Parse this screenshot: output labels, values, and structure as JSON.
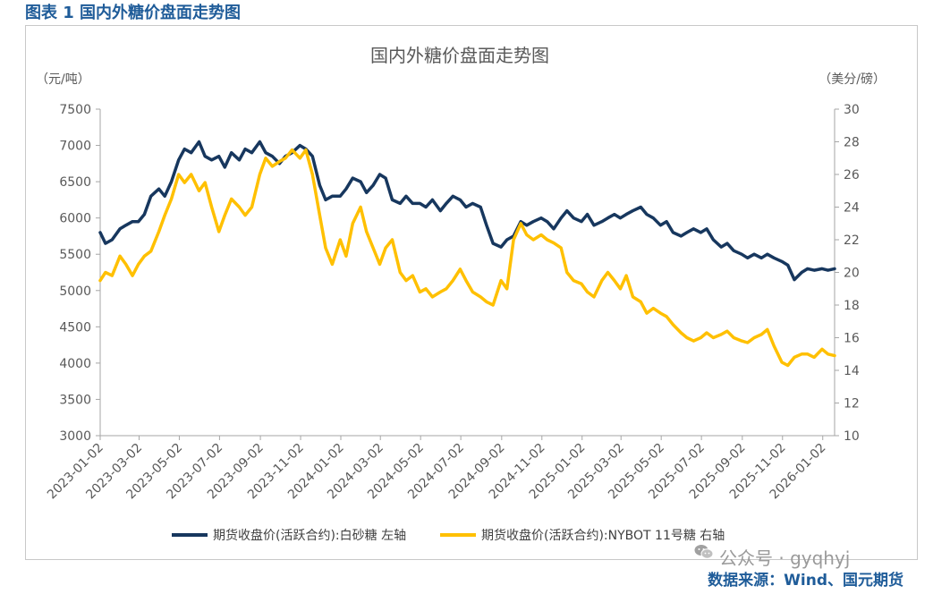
{
  "figure_caption": "图表 1 国内外糖价盘面走势图",
  "source_text": "数据来源：Wind、国元期货",
  "watermark": {
    "icon": "wechat-icon",
    "text": "公众号 · gyqhyj"
  },
  "chart_data": {
    "type": "line",
    "title": "国内外糖价盘面走势图",
    "y_left_unit": "（元/吨）",
    "y_right_unit": "（美分/磅）",
    "y_left_lim": [
      3000,
      7500
    ],
    "y_right_lim": [
      10,
      30
    ],
    "y_left_ticks": [
      3000,
      3500,
      4000,
      4500,
      5000,
      5500,
      6000,
      6500,
      7000,
      7500
    ],
    "y_right_ticks": [
      10,
      12,
      14,
      16,
      18,
      20,
      22,
      24,
      26,
      28,
      30
    ],
    "x_ticks": [
      "2023-01-02",
      "2023-03-02",
      "2023-05-02",
      "2023-07-02",
      "2023-09-02",
      "2023-11-02",
      "2024-01-02",
      "2024-03-02",
      "2024-05-02",
      "2024-07-02",
      "2024-09-02",
      "2024-11-02",
      "2025-01-02",
      "2025-03-02",
      "2025-05-02",
      "2025-07-02",
      "2025-09-02",
      "2025-11-02",
      "2026-01-02"
    ],
    "x_range": [
      "2023-01-02",
      "2026-01-20"
    ],
    "grid": false,
    "legend_position": "bottom",
    "series": [
      {
        "name": "期货收盘价(活跃合约):白砂糖  左轴",
        "axis": "left",
        "color": "#17375e",
        "points": [
          [
            "2023-01-02",
            5800
          ],
          [
            "2023-01-10",
            5650
          ],
          [
            "2023-01-20",
            5700
          ],
          [
            "2023-02-01",
            5850
          ],
          [
            "2023-02-10",
            5900
          ],
          [
            "2023-02-20",
            5950
          ],
          [
            "2023-03-01",
            5950
          ],
          [
            "2023-03-10",
            6050
          ],
          [
            "2023-03-20",
            6300
          ],
          [
            "2023-04-01",
            6400
          ],
          [
            "2023-04-10",
            6300
          ],
          [
            "2023-04-20",
            6500
          ],
          [
            "2023-05-01",
            6800
          ],
          [
            "2023-05-10",
            6950
          ],
          [
            "2023-05-20",
            6900
          ],
          [
            "2023-06-01",
            7050
          ],
          [
            "2023-06-10",
            6850
          ],
          [
            "2023-06-20",
            6800
          ],
          [
            "2023-07-01",
            6850
          ],
          [
            "2023-07-10",
            6700
          ],
          [
            "2023-07-20",
            6900
          ],
          [
            "2023-08-01",
            6800
          ],
          [
            "2023-08-10",
            6950
          ],
          [
            "2023-08-20",
            6900
          ],
          [
            "2023-09-01",
            7050
          ],
          [
            "2023-09-10",
            6900
          ],
          [
            "2023-09-20",
            6850
          ],
          [
            "2023-10-01",
            6750
          ],
          [
            "2023-10-10",
            6850
          ],
          [
            "2023-10-20",
            6900
          ],
          [
            "2023-11-01",
            7000
          ],
          [
            "2023-11-10",
            6950
          ],
          [
            "2023-11-20",
            6850
          ],
          [
            "2023-12-01",
            6450
          ],
          [
            "2023-12-10",
            6250
          ],
          [
            "2023-12-20",
            6300
          ],
          [
            "2024-01-01",
            6300
          ],
          [
            "2024-01-10",
            6400
          ],
          [
            "2024-01-20",
            6550
          ],
          [
            "2024-02-01",
            6500
          ],
          [
            "2024-02-10",
            6350
          ],
          [
            "2024-02-20",
            6450
          ],
          [
            "2024-03-01",
            6600
          ],
          [
            "2024-03-10",
            6550
          ],
          [
            "2024-03-20",
            6250
          ],
          [
            "2024-04-01",
            6200
          ],
          [
            "2024-04-10",
            6300
          ],
          [
            "2024-04-20",
            6200
          ],
          [
            "2024-05-01",
            6200
          ],
          [
            "2024-05-10",
            6150
          ],
          [
            "2024-05-20",
            6250
          ],
          [
            "2024-06-01",
            6100
          ],
          [
            "2024-06-10",
            6200
          ],
          [
            "2024-06-20",
            6300
          ],
          [
            "2024-07-01",
            6250
          ],
          [
            "2024-07-10",
            6150
          ],
          [
            "2024-07-20",
            6200
          ],
          [
            "2024-08-01",
            6150
          ],
          [
            "2024-08-10",
            5900
          ],
          [
            "2024-08-20",
            5650
          ],
          [
            "2024-09-01",
            5600
          ],
          [
            "2024-09-10",
            5700
          ],
          [
            "2024-09-20",
            5750
          ],
          [
            "2024-10-01",
            5950
          ],
          [
            "2024-10-10",
            5900
          ],
          [
            "2024-10-20",
            5950
          ],
          [
            "2024-11-01",
            6000
          ],
          [
            "2024-11-10",
            5950
          ],
          [
            "2024-11-20",
            5850
          ],
          [
            "2024-12-01",
            6000
          ],
          [
            "2024-12-10",
            6100
          ],
          [
            "2024-12-20",
            6000
          ],
          [
            "2025-01-01",
            5950
          ],
          [
            "2025-01-10",
            6050
          ],
          [
            "2025-01-20",
            5900
          ],
          [
            "2025-02-01",
            5950
          ],
          [
            "2025-02-10",
            6000
          ],
          [
            "2025-02-20",
            6050
          ],
          [
            "2025-03-01",
            6000
          ],
          [
            "2025-03-10",
            6050
          ],
          [
            "2025-03-20",
            6100
          ],
          [
            "2025-04-01",
            6150
          ],
          [
            "2025-04-10",
            6050
          ],
          [
            "2025-04-20",
            6000
          ],
          [
            "2025-05-01",
            5900
          ],
          [
            "2025-05-10",
            5950
          ],
          [
            "2025-05-20",
            5800
          ],
          [
            "2025-06-01",
            5750
          ],
          [
            "2025-06-10",
            5800
          ],
          [
            "2025-06-20",
            5850
          ],
          [
            "2025-07-01",
            5800
          ],
          [
            "2025-07-10",
            5850
          ],
          [
            "2025-07-20",
            5700
          ],
          [
            "2025-08-01",
            5600
          ],
          [
            "2025-08-10",
            5650
          ],
          [
            "2025-08-20",
            5550
          ],
          [
            "2025-09-01",
            5500
          ],
          [
            "2025-09-10",
            5450
          ],
          [
            "2025-09-20",
            5500
          ],
          [
            "2025-10-01",
            5450
          ],
          [
            "2025-10-10",
            5500
          ],
          [
            "2025-10-20",
            5450
          ],
          [
            "2025-11-01",
            5400
          ],
          [
            "2025-11-10",
            5350
          ],
          [
            "2025-11-20",
            5150
          ],
          [
            "2025-12-01",
            5250
          ],
          [
            "2025-12-10",
            5300
          ],
          [
            "2025-12-20",
            5280
          ],
          [
            "2026-01-01",
            5300
          ],
          [
            "2026-01-10",
            5280
          ],
          [
            "2026-01-20",
            5300
          ]
        ]
      },
      {
        "name": "期货收盘价(活跃合约):NYBOT 11号糖  右轴",
        "axis": "right",
        "color": "#ffc000",
        "points": [
          [
            "2023-01-02",
            19.5
          ],
          [
            "2023-01-10",
            20.0
          ],
          [
            "2023-01-20",
            19.8
          ],
          [
            "2023-02-01",
            21.0
          ],
          [
            "2023-02-10",
            20.5
          ],
          [
            "2023-02-20",
            19.8
          ],
          [
            "2023-03-01",
            20.5
          ],
          [
            "2023-03-10",
            21.0
          ],
          [
            "2023-03-20",
            21.3
          ],
          [
            "2023-04-01",
            22.5
          ],
          [
            "2023-04-10",
            23.5
          ],
          [
            "2023-04-20",
            24.5
          ],
          [
            "2023-05-01",
            26.0
          ],
          [
            "2023-05-10",
            25.5
          ],
          [
            "2023-05-20",
            26.0
          ],
          [
            "2023-06-01",
            25.0
          ],
          [
            "2023-06-10",
            25.5
          ],
          [
            "2023-06-20",
            24.0
          ],
          [
            "2023-07-01",
            22.5
          ],
          [
            "2023-07-10",
            23.5
          ],
          [
            "2023-07-20",
            24.5
          ],
          [
            "2023-08-01",
            24.0
          ],
          [
            "2023-08-10",
            23.5
          ],
          [
            "2023-08-20",
            24.0
          ],
          [
            "2023-09-01",
            26.0
          ],
          [
            "2023-09-10",
            27.0
          ],
          [
            "2023-09-20",
            26.5
          ],
          [
            "2023-10-01",
            26.8
          ],
          [
            "2023-10-10",
            27.0
          ],
          [
            "2023-10-20",
            27.5
          ],
          [
            "2023-11-01",
            27.0
          ],
          [
            "2023-11-10",
            27.5
          ],
          [
            "2023-11-20",
            26.0
          ],
          [
            "2023-12-01",
            23.5
          ],
          [
            "2023-12-10",
            21.5
          ],
          [
            "2023-12-20",
            20.5
          ],
          [
            "2024-01-01",
            22.0
          ],
          [
            "2024-01-10",
            21.0
          ],
          [
            "2024-01-20",
            23.0
          ],
          [
            "2024-02-01",
            24.0
          ],
          [
            "2024-02-10",
            22.5
          ],
          [
            "2024-02-20",
            21.5
          ],
          [
            "2024-03-01",
            20.5
          ],
          [
            "2024-03-10",
            21.5
          ],
          [
            "2024-03-20",
            22.0
          ],
          [
            "2024-04-01",
            20.0
          ],
          [
            "2024-04-10",
            19.5
          ],
          [
            "2024-04-20",
            19.8
          ],
          [
            "2024-05-01",
            18.8
          ],
          [
            "2024-05-10",
            19.0
          ],
          [
            "2024-05-20",
            18.5
          ],
          [
            "2024-06-01",
            18.8
          ],
          [
            "2024-06-10",
            19.0
          ],
          [
            "2024-06-20",
            19.5
          ],
          [
            "2024-07-01",
            20.2
          ],
          [
            "2024-07-10",
            19.5
          ],
          [
            "2024-07-20",
            18.8
          ],
          [
            "2024-08-01",
            18.5
          ],
          [
            "2024-08-10",
            18.2
          ],
          [
            "2024-08-20",
            18.0
          ],
          [
            "2024-09-01",
            19.5
          ],
          [
            "2024-09-10",
            19.0
          ],
          [
            "2024-09-20",
            22.0
          ],
          [
            "2024-10-01",
            23.0
          ],
          [
            "2024-10-10",
            22.3
          ],
          [
            "2024-10-20",
            22.0
          ],
          [
            "2024-11-01",
            22.3
          ],
          [
            "2024-11-10",
            22.0
          ],
          [
            "2024-11-20",
            21.8
          ],
          [
            "2024-12-01",
            21.5
          ],
          [
            "2024-12-10",
            20.0
          ],
          [
            "2024-12-20",
            19.5
          ],
          [
            "2025-01-01",
            19.3
          ],
          [
            "2025-01-10",
            18.8
          ],
          [
            "2025-01-20",
            18.5
          ],
          [
            "2025-02-01",
            19.5
          ],
          [
            "2025-02-10",
            20.0
          ],
          [
            "2025-02-20",
            19.5
          ],
          [
            "2025-03-01",
            19.0
          ],
          [
            "2025-03-10",
            19.8
          ],
          [
            "2025-03-20",
            18.5
          ],
          [
            "2025-04-01",
            18.2
          ],
          [
            "2025-04-10",
            17.5
          ],
          [
            "2025-04-20",
            17.8
          ],
          [
            "2025-05-01",
            17.5
          ],
          [
            "2025-05-10",
            17.3
          ],
          [
            "2025-05-20",
            16.8
          ],
          [
            "2025-06-01",
            16.3
          ],
          [
            "2025-06-10",
            16.0
          ],
          [
            "2025-06-20",
            15.8
          ],
          [
            "2025-07-01",
            16.0
          ],
          [
            "2025-07-10",
            16.3
          ],
          [
            "2025-07-20",
            16.0
          ],
          [
            "2025-08-01",
            16.2
          ],
          [
            "2025-08-10",
            16.4
          ],
          [
            "2025-08-20",
            16.0
          ],
          [
            "2025-09-01",
            15.8
          ],
          [
            "2025-09-10",
            15.7
          ],
          [
            "2025-09-20",
            16.0
          ],
          [
            "2025-10-01",
            16.2
          ],
          [
            "2025-10-10",
            16.5
          ],
          [
            "2025-10-20",
            15.5
          ],
          [
            "2025-11-01",
            14.5
          ],
          [
            "2025-11-10",
            14.3
          ],
          [
            "2025-11-20",
            14.8
          ],
          [
            "2025-12-01",
            15.0
          ],
          [
            "2025-12-10",
            15.0
          ],
          [
            "2025-12-20",
            14.8
          ],
          [
            "2026-01-01",
            15.3
          ],
          [
            "2026-01-10",
            15.0
          ],
          [
            "2026-01-20",
            14.9
          ]
        ]
      }
    ]
  }
}
